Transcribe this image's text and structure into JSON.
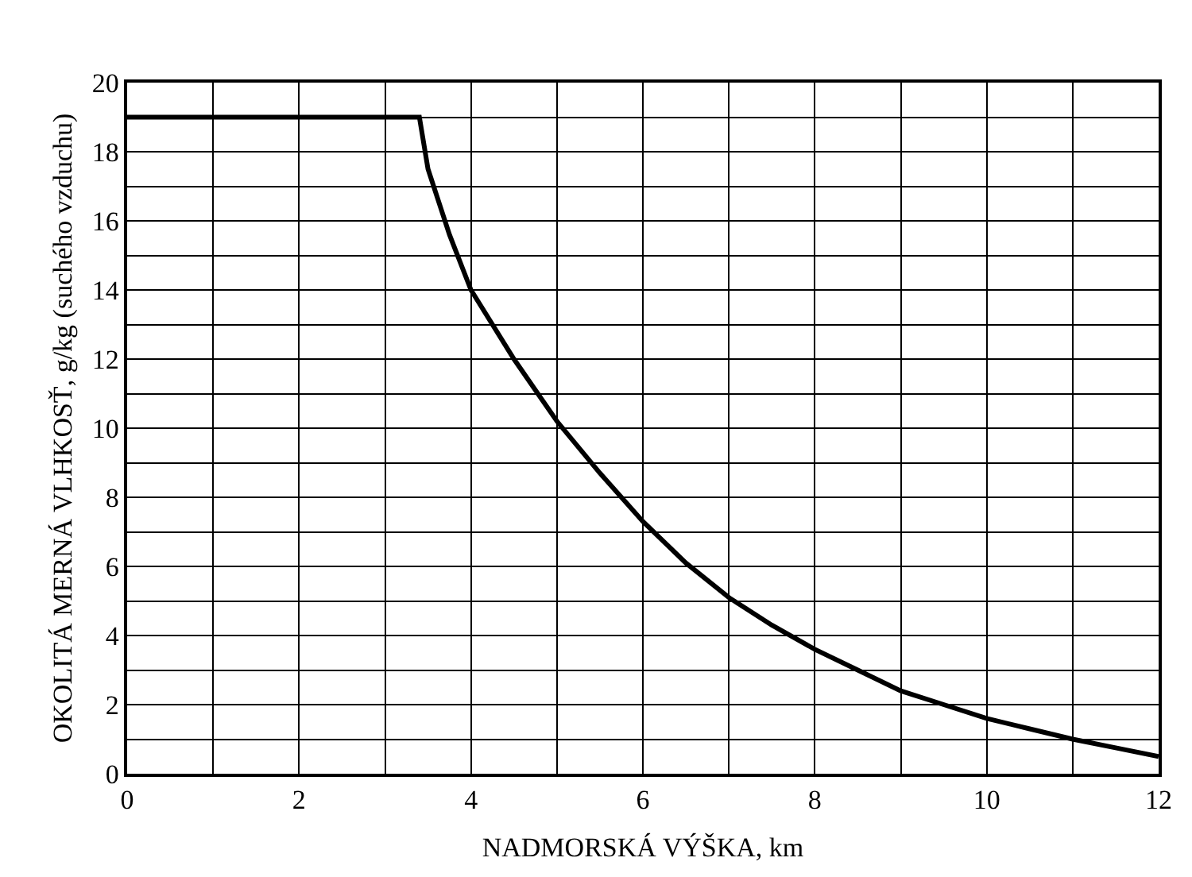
{
  "chart_data": {
    "type": "line",
    "xlabel": "NADMORSKÁ VÝŠKA, km",
    "ylabel": "OKOLITÁ MERNÁ VLHKOSŤ, g/kg (suchého vzduchu)",
    "x": [
      0,
      1,
      2,
      3,
      3.4,
      3.5,
      3.75,
      4,
      4.5,
      5,
      5.5,
      6,
      6.5,
      7,
      7.5,
      8,
      8.5,
      9,
      9.5,
      10,
      10.5,
      11,
      11.5,
      12
    ],
    "series": [
      {
        "color": "#000000",
        "values": [
          19,
          19,
          19,
          19,
          19,
          17.5,
          15.6,
          14,
          12,
          10.2,
          8.7,
          7.3,
          6.1,
          5.1,
          4.3,
          3.6,
          3,
          2.4,
          2,
          1.6,
          1.3,
          1,
          0.75,
          0.5
        ]
      }
    ],
    "xlim": [
      0,
      12
    ],
    "ylim": [
      0,
      20
    ],
    "xticks": [
      0,
      {
        "value": 1,
        "label": null
      },
      2,
      {
        "value": 3,
        "label": null
      },
      4,
      {
        "value": 5,
        "label": null
      },
      6,
      {
        "value": 7,
        "label": null
      },
      8,
      {
        "value": 9,
        "label": null
      },
      10,
      {
        "value": 11,
        "label": null
      },
      12
    ],
    "yticks": [
      0,
      {
        "value": 1,
        "label": null
      },
      2,
      {
        "value": 3,
        "label": null
      },
      4,
      {
        "value": 5,
        "label": null
      },
      6,
      {
        "value": 7,
        "label": null
      },
      8,
      {
        "value": 9,
        "label": null
      },
      10,
      {
        "value": 11,
        "label": null
      },
      12,
      {
        "value": 13,
        "label": null
      },
      14,
      {
        "value": 15,
        "label": null
      },
      16,
      {
        "value": 17,
        "label": null
      },
      18,
      {
        "value": 19,
        "label": null
      },
      20
    ],
    "grid": true,
    "marker": "none",
    "line_style": "solid",
    "legend": false
  }
}
